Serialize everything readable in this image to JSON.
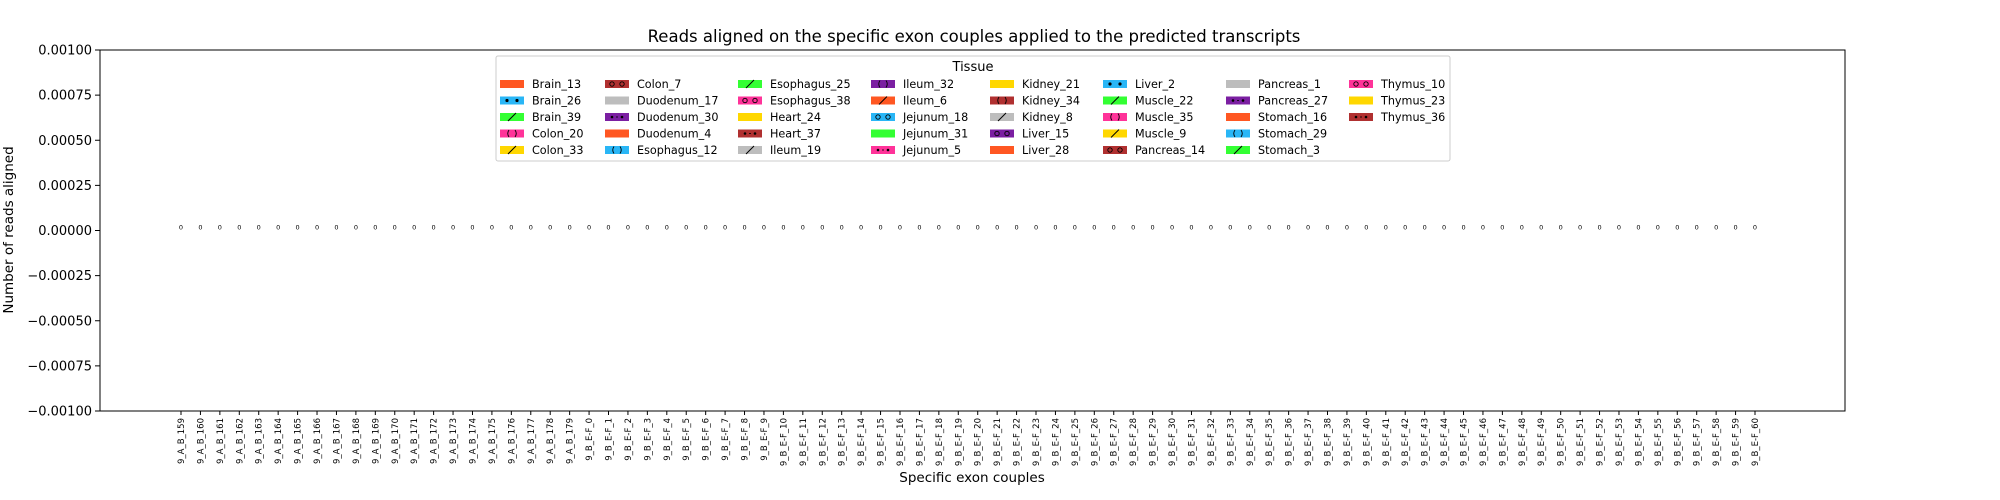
{
  "chart_data": {
    "type": "bar",
    "title": "Reads aligned on the specific exon couples applied to the predicted transcripts",
    "xlabel": "Specific exon couples",
    "ylabel": "Number of reads aligned",
    "ylim": [
      -0.001,
      0.001
    ],
    "yticks": [
      {
        "value": 0.001,
        "label": "0.00100"
      },
      {
        "value": 0.00075,
        "label": "0.00075"
      },
      {
        "value": 0.0005,
        "label": "0.00050"
      },
      {
        "value": 0.00025,
        "label": "0.00025"
      },
      {
        "value": 0.0,
        "label": "0.00000"
      },
      {
        "value": -0.00025,
        "label": "−0.00025"
      },
      {
        "value": -0.0005,
        "label": "−0.00050"
      },
      {
        "value": -0.00075,
        "label": "−0.00075"
      },
      {
        "value": -0.001,
        "label": "−0.00100"
      }
    ],
    "grid": false,
    "legend_title": "Tissue",
    "legend_position": "top-center",
    "categories": [
      "9_A_B_159",
      "9_A_B_160",
      "9_A_B_161",
      "9_A_B_162",
      "9_A_B_163",
      "9_A_B_164",
      "9_A_B_165",
      "9_A_B_166",
      "9_A_B_167",
      "9_A_B_168",
      "9_A_B_169",
      "9_A_B_170",
      "9_A_B_171",
      "9_A_B_172",
      "9_A_B_173",
      "9_A_B_174",
      "9_A_B_175",
      "9_A_B_176",
      "9_A_B_177",
      "9_A_B_178",
      "9_A_B_179",
      "9_B_E-F_0",
      "9_B_E-F_1",
      "9_B_E-F_2",
      "9_B_E-F_3",
      "9_B_E-F_4",
      "9_B_E-F_5",
      "9_B_E-F_6",
      "9_B_E-F_7",
      "9_B_E-F_8",
      "9_B_E-F_9",
      "9_B_E-F_10",
      "9_B_E-F_11",
      "9_B_E-F_12",
      "9_B_E-F_13",
      "9_B_E-F_14",
      "9_B_E-F_15",
      "9_B_E-F_16",
      "9_B_E-F_17",
      "9_B_E-F_18",
      "9_B_E-F_19",
      "9_B_E-F_20",
      "9_B_E-F_21",
      "9_B_E-F_22",
      "9_B_E-F_23",
      "9_B_E-F_24",
      "9_B_E-F_25",
      "9_B_E-F_26",
      "9_B_E-F_27",
      "9_B_E-F_28",
      "9_B_E-F_29",
      "9_B_E-F_30",
      "9_B_E-F_31",
      "9_B_E-F_32",
      "9_B_E-F_33",
      "9_B_E-F_34",
      "9_B_E-F_35",
      "9_B_E-F_36",
      "9_B_E-F_37",
      "9_B_E-F_38",
      "9_B_E-F_39",
      "9_B_E-F_40",
      "9_B_E-F_41",
      "9_B_E-F_42",
      "9_B_E-F_43",
      "9_B_E-F_44",
      "9_B_E-F_45",
      "9_B_E-F_46",
      "9_B_E-F_47",
      "9_B_E-F_48",
      "9_B_E-F_49",
      "9_B_E-F_50",
      "9_B_E-F_51",
      "9_B_E-F_52",
      "9_B_E-F_53",
      "9_B_E-F_54",
      "9_B_E-F_55",
      "9_B_E-F_56",
      "9_B_E-F_57",
      "9_B_E-F_58",
      "9_B_E-F_59",
      "9_B_E-F_60"
    ],
    "values": [
      0,
      0,
      0,
      0,
      0,
      0,
      0,
      0,
      0,
      0,
      0,
      0,
      0,
      0,
      0,
      0,
      0,
      0,
      0,
      0,
      0,
      0,
      0,
      0,
      0,
      0,
      0,
      0,
      0,
      0,
      0,
      0,
      0,
      0,
      0,
      0,
      0,
      0,
      0,
      0,
      0,
      0,
      0,
      0,
      0,
      0,
      0,
      0,
      0,
      0,
      0,
      0,
      0,
      0,
      0,
      0,
      0,
      0,
      0,
      0,
      0,
      0,
      0,
      0,
      0,
      0,
      0,
      0,
      0,
      0,
      0,
      0,
      0,
      0,
      0,
      0,
      0,
      0,
      0,
      0,
      0,
      0
    ],
    "value_labels": [
      "0",
      "0",
      "0",
      "0",
      "0",
      "0",
      "0",
      "0",
      "0",
      "0",
      "0",
      "0",
      "0",
      "0",
      "0",
      "0",
      "0",
      "0",
      "0",
      "0",
      "0",
      "0",
      "0",
      "0",
      "0",
      "0",
      "0",
      "0",
      "0",
      "0",
      "0",
      "0",
      "0",
      "0",
      "0",
      "0",
      "0",
      "0",
      "0",
      "0",
      "0",
      "0",
      "0",
      "0",
      "0",
      "0",
      "0",
      "0",
      "0",
      "0",
      "0",
      "0",
      "0",
      "0",
      "0",
      "0",
      "0",
      "0",
      "0",
      "0",
      "0",
      "0",
      "0",
      "0",
      "0",
      "0",
      "0",
      "0",
      "0",
      "0",
      "0",
      "0",
      "0",
      "0",
      "0",
      "0",
      "0",
      "0",
      "0",
      "0",
      "0",
      "0"
    ],
    "legend": [
      {
        "name": "Brain_13",
        "color": "#ff5722",
        "pattern": "solid"
      },
      {
        "name": "Brain_26",
        "color": "#29b6f6",
        "pattern": "dot"
      },
      {
        "name": "Brain_39",
        "color": "#33ff33",
        "pattern": "slash"
      },
      {
        "name": "Colon_20",
        "color": "#ff3399",
        "pattern": "bracket"
      },
      {
        "name": "Colon_33",
        "color": "#ffd700",
        "pattern": "slash"
      },
      {
        "name": "Colon_7",
        "color": "#b03030",
        "pattern": "ring"
      },
      {
        "name": "Duodenum_17",
        "color": "#bdbdbd",
        "pattern": "solid"
      },
      {
        "name": "Duodenum_30",
        "color": "#7b1fa2",
        "pattern": "star"
      },
      {
        "name": "Duodenum_4",
        "color": "#ff5722",
        "pattern": "solid"
      },
      {
        "name": "Esophagus_12",
        "color": "#29b6f6",
        "pattern": "bracket"
      },
      {
        "name": "Esophagus_25",
        "color": "#33ff33",
        "pattern": "slash"
      },
      {
        "name": "Esophagus_38",
        "color": "#ff3399",
        "pattern": "ring"
      },
      {
        "name": "Heart_24",
        "color": "#ffd700",
        "pattern": "solid"
      },
      {
        "name": "Heart_37",
        "color": "#b03030",
        "pattern": "star"
      },
      {
        "name": "Ileum_19",
        "color": "#bdbdbd",
        "pattern": "slash"
      },
      {
        "name": "Ileum_32",
        "color": "#7b1fa2",
        "pattern": "bracket"
      },
      {
        "name": "Ileum_6",
        "color": "#ff5722",
        "pattern": "slash"
      },
      {
        "name": "Jejunum_18",
        "color": "#29b6f6",
        "pattern": "ring"
      },
      {
        "name": "Jejunum_31",
        "color": "#33ff33",
        "pattern": "solid"
      },
      {
        "name": "Jejunum_5",
        "color": "#ff3399",
        "pattern": "star"
      },
      {
        "name": "Kidney_21",
        "color": "#ffd700",
        "pattern": "solid"
      },
      {
        "name": "Kidney_34",
        "color": "#b03030",
        "pattern": "bracket"
      },
      {
        "name": "Kidney_8",
        "color": "#bdbdbd",
        "pattern": "slash"
      },
      {
        "name": "Liver_15",
        "color": "#7b1fa2",
        "pattern": "ring"
      },
      {
        "name": "Liver_28",
        "color": "#ff5722",
        "pattern": "solid"
      },
      {
        "name": "Liver_2",
        "color": "#29b6f6",
        "pattern": "dot"
      },
      {
        "name": "Muscle_22",
        "color": "#33ff33",
        "pattern": "slash"
      },
      {
        "name": "Muscle_35",
        "color": "#ff3399",
        "pattern": "bracket"
      },
      {
        "name": "Muscle_9",
        "color": "#ffd700",
        "pattern": "slash"
      },
      {
        "name": "Pancreas_14",
        "color": "#b03030",
        "pattern": "ring"
      },
      {
        "name": "Pancreas_1",
        "color": "#bdbdbd",
        "pattern": "solid"
      },
      {
        "name": "Pancreas_27",
        "color": "#7b1fa2",
        "pattern": "star"
      },
      {
        "name": "Stomach_16",
        "color": "#ff5722",
        "pattern": "solid"
      },
      {
        "name": "Stomach_29",
        "color": "#29b6f6",
        "pattern": "bracket"
      },
      {
        "name": "Stomach_3",
        "color": "#33ff33",
        "pattern": "slash"
      },
      {
        "name": "Thymus_10",
        "color": "#ff3399",
        "pattern": "ring"
      },
      {
        "name": "Thymus_23",
        "color": "#ffd700",
        "pattern": "solid"
      },
      {
        "name": "Thymus_36",
        "color": "#b03030",
        "pattern": "star"
      }
    ]
  }
}
